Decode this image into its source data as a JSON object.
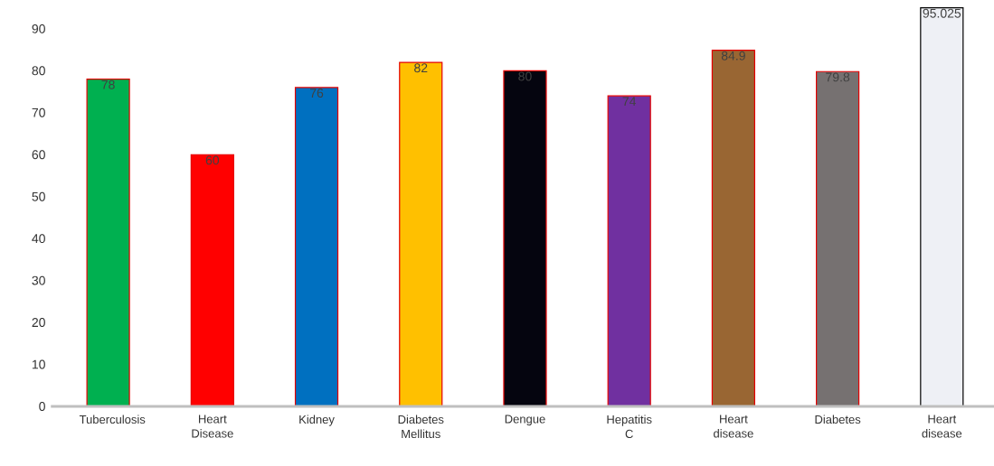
{
  "chart_data": {
    "type": "bar",
    "categories": [
      "Tuberculosis",
      "Heart Disease",
      "Kidney",
      "Diabetes Mellitus",
      "Dengue",
      "Hepatitis C",
      "Heart disease",
      "Diabetes",
      "Heart disease"
    ],
    "values": [
      78,
      60,
      76,
      82,
      80,
      74,
      84.9,
      79.8,
      95.025
    ],
    "colors": [
      "#00b050",
      "#ff0000",
      "#0070c0",
      "#ffc000",
      "#05050f",
      "#7030a0",
      "#996633",
      "#767171",
      "#eef0f5"
    ],
    "data_labels": true,
    "ylim": [
      0,
      96
    ],
    "yticks": [
      0,
      10,
      20,
      30,
      40,
      50,
      60,
      70,
      80,
      90
    ],
    "grid": false
  }
}
